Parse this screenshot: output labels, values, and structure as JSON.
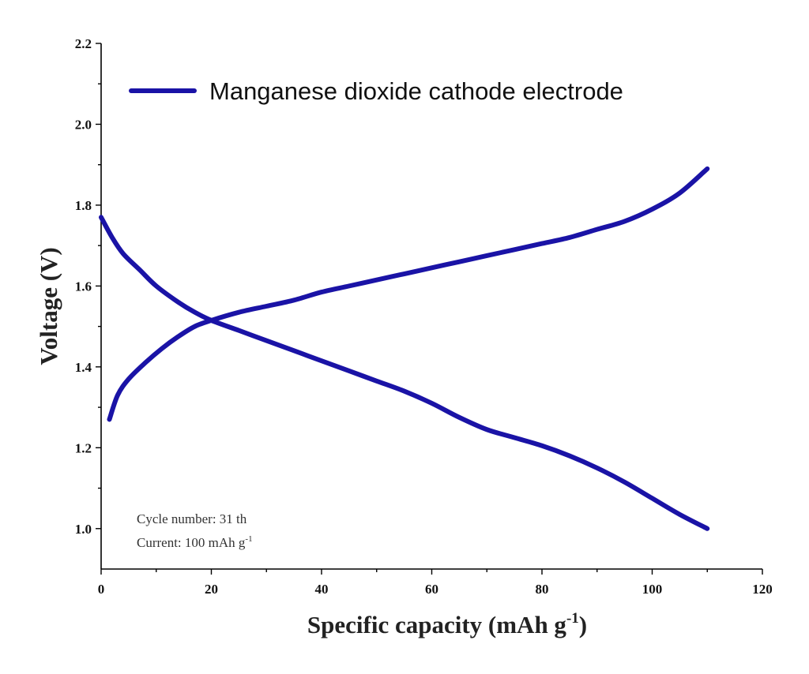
{
  "chart_data": {
    "type": "line",
    "title": "",
    "xlabel": "Specific capacity (mAh g",
    "xlabel_sup": "-1",
    "xlabel_close": ")",
    "ylabel": "Voltage (V)",
    "xlim": [
      0,
      120
    ],
    "ylim": [
      0.9,
      2.2
    ],
    "xticks": [
      0,
      20,
      40,
      60,
      80,
      100,
      120
    ],
    "yticks": [
      1.0,
      1.2,
      1.4,
      1.6,
      1.8,
      2.0,
      2.2
    ],
    "ytick_labels": [
      "1.0",
      "1.2",
      "1.4",
      "1.6",
      "1.8",
      "2.0",
      "2.2"
    ],
    "grid": false,
    "legend": {
      "position": "top-left",
      "label": "Manganese dioxide cathode electrode"
    },
    "color": "#1a13a6",
    "annotations": {
      "cycle": "Cycle number: 31 th",
      "current_prefix": "Current: 100 mAh g",
      "current_sup": "-1"
    },
    "series": [
      {
        "name": "Manganese dioxide cathode electrode",
        "segments": [
          {
            "x": [
              0,
              2,
              4,
              7,
              10,
              14,
              17,
              20,
              25,
              30,
              35,
              40,
              45,
              50,
              55,
              60,
              65,
              70,
              75,
              80,
              85,
              90,
              95,
              100,
              105,
              110
            ],
            "y": [
              1.77,
              1.72,
              1.68,
              1.64,
              1.6,
              1.56,
              1.535,
              1.515,
              1.49,
              1.465,
              1.44,
              1.415,
              1.39,
              1.365,
              1.34,
              1.31,
              1.275,
              1.245,
              1.225,
              1.205,
              1.18,
              1.15,
              1.115,
              1.075,
              1.035,
              1.0
            ]
          },
          {
            "x": [
              1.5,
              3,
              5,
              8,
              11,
              14,
              17,
              20,
              25,
              30,
              35,
              40,
              45,
              50,
              55,
              60,
              65,
              70,
              75,
              80,
              85,
              90,
              95,
              100,
              105,
              110
            ],
            "y": [
              1.27,
              1.33,
              1.37,
              1.41,
              1.445,
              1.475,
              1.5,
              1.515,
              1.535,
              1.55,
              1.565,
              1.585,
              1.6,
              1.615,
              1.63,
              1.645,
              1.66,
              1.675,
              1.69,
              1.705,
              1.72,
              1.74,
              1.76,
              1.79,
              1.83,
              1.89
            ]
          }
        ]
      }
    ]
  }
}
